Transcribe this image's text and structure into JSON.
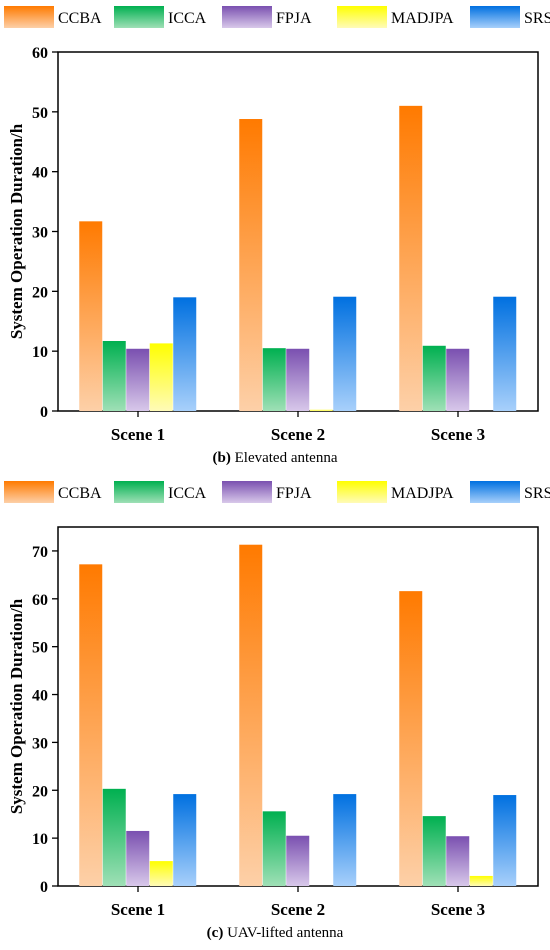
{
  "legend": {
    "position": "top",
    "items": [
      {
        "label": "CCBA",
        "color": "#ff7a00",
        "light": "#fdd0a8"
      },
      {
        "label": "ICCA",
        "color": "#00b050",
        "light": "#9fe0b6"
      },
      {
        "label": "FPJA",
        "color": "#7a50b0",
        "light": "#d8c8ea"
      },
      {
        "label": "MADJPA",
        "color": "#ffff00",
        "light": "#fffbb8"
      },
      {
        "label": "SRSA",
        "color": "#0070e0",
        "light": "#a8d0fb"
      }
    ]
  },
  "chart_data": [
    {
      "type": "bar",
      "caption_label": "(b)",
      "caption_text": "Elevated antenna",
      "categories": [
        "Scene 1",
        "Scene 2",
        "Scene 3"
      ],
      "ylabel": "System Operation Duration/h",
      "xlabel": "",
      "ylim": [
        0,
        60
      ],
      "yticks": [
        0,
        10,
        20,
        30,
        40,
        50,
        60
      ],
      "grid": false,
      "series": [
        {
          "name": "CCBA",
          "values": [
            31.7,
            48.8,
            51.0
          ]
        },
        {
          "name": "ICCA",
          "values": [
            11.7,
            10.5,
            10.9
          ]
        },
        {
          "name": "FPJA",
          "values": [
            10.4,
            10.4,
            10.4
          ]
        },
        {
          "name": "MADJPA",
          "values": [
            11.3,
            0.2,
            0
          ]
        },
        {
          "name": "SRSA",
          "values": [
            19.0,
            19.1,
            19.1
          ]
        }
      ]
    },
    {
      "type": "bar",
      "caption_label": "(c)",
      "caption_text": "UAV-lifted antenna",
      "categories": [
        "Scene 1",
        "Scene 2",
        "Scene 3"
      ],
      "ylabel": "System Operation Duration/h",
      "xlabel": "",
      "ylim": [
        0,
        75
      ],
      "yticks": [
        0,
        10,
        20,
        30,
        40,
        50,
        60,
        70
      ],
      "grid": false,
      "series": [
        {
          "name": "CCBA",
          "values": [
            67.2,
            71.3,
            61.6
          ]
        },
        {
          "name": "ICCA",
          "values": [
            20.3,
            15.6,
            14.6
          ]
        },
        {
          "name": "FPJA",
          "values": [
            11.5,
            10.5,
            10.4
          ]
        },
        {
          "name": "MADJPA",
          "values": [
            5.2,
            0,
            2.1
          ]
        },
        {
          "name": "SRSA",
          "values": [
            19.2,
            19.2,
            19.0
          ]
        }
      ]
    }
  ]
}
